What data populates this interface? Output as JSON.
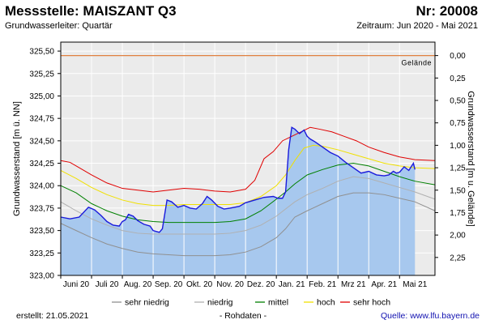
{
  "header": {
    "title": "Messstelle: MAISZANT Q3",
    "number": "Nr: 20008",
    "aquifer": "Grundwasserleiter: Quartär",
    "period": "Zeitraum: Jun 2020 - Mai 2021"
  },
  "footer": {
    "created": "erstellt:  21.05.2021",
    "raw": "- Rohdaten -",
    "source": "Quelle: www.lfu.bayern.de"
  },
  "colors": {
    "measured_fill": "#a7c8ee",
    "measured_line": "#1a1adc",
    "sehr_niedrig": "#909090",
    "niedrig": "#b0b0b0",
    "mittel": "#008000",
    "hoch": "#f0e000",
    "sehr_hoch": "#e00000",
    "gelaende": "#e08040",
    "grid": "#ffffff",
    "plot_bg": "#ebebeb"
  },
  "chart_data": {
    "type": "line",
    "title": "Messstelle: MAISZANT Q3",
    "ylabel": "Grundwasserstand [m ü. NN]",
    "ylabel_right": "Grundwasserstand [m u. Gelände]",
    "ylim": [
      323.0,
      325.6
    ],
    "yticks": [
      "323,00",
      "323,25",
      "323,50",
      "323,75",
      "324,00",
      "324,25",
      "324,50",
      "324,75",
      "325,00",
      "325,25",
      "325,50"
    ],
    "ytick_values": [
      323.0,
      323.25,
      323.5,
      323.75,
      324.0,
      324.25,
      324.5,
      324.75,
      325.0,
      325.25,
      325.5
    ],
    "right_ticks": [
      "0,00",
      "0,25",
      "0,50",
      "0,75",
      "1,00",
      "1,25",
      "1,50",
      "1,75",
      "2,00",
      "2,25"
    ],
    "right_tick_values": [
      0,
      0.25,
      0.5,
      0.75,
      1.0,
      1.25,
      1.5,
      1.75,
      2.0,
      2.25
    ],
    "gelaende_level": 325.45,
    "gelaende_label": "Gelände",
    "xlim": [
      0,
      12.15
    ],
    "month_labels": [
      "Juni 20",
      "Juli 20",
      "Aug. 20",
      "Sep. 20",
      "Okt. 20",
      "Nov. 20",
      "Dez. 20",
      "Jan. 21",
      "Feb. 21",
      "Mrz 21",
      "Apr. 21",
      "Mai 21"
    ],
    "month_positions": [
      0,
      1,
      2,
      3,
      4,
      5,
      6,
      7,
      8,
      9,
      10,
      11
    ],
    "series": [
      {
        "name": "sehr niedrig",
        "key": "sehr_niedrig",
        "x": [
          0,
          0.5,
          1,
          1.5,
          2,
          2.5,
          3,
          3.5,
          4,
          4.5,
          5,
          5.5,
          6,
          6.5,
          7,
          7.3,
          7.6,
          8,
          8.5,
          9,
          9.5,
          10,
          10.5,
          11,
          11.5,
          12.15
        ],
        "y": [
          323.58,
          323.5,
          323.42,
          323.35,
          323.3,
          323.26,
          323.24,
          323.23,
          323.22,
          323.22,
          323.22,
          323.23,
          323.26,
          323.32,
          323.42,
          323.52,
          323.65,
          323.72,
          323.8,
          323.88,
          323.92,
          323.92,
          323.9,
          323.86,
          323.82,
          323.72
        ]
      },
      {
        "name": "niedrig",
        "key": "niedrig",
        "x": [
          0,
          0.5,
          1,
          1.5,
          2,
          2.5,
          3,
          3.5,
          4,
          4.5,
          5,
          5.5,
          6,
          6.5,
          7,
          7.3,
          7.6,
          8,
          8.5,
          9,
          9.5,
          10,
          10.5,
          11,
          11.5,
          12.15
        ],
        "y": [
          323.82,
          323.72,
          323.63,
          323.56,
          323.5,
          323.47,
          323.46,
          323.46,
          323.46,
          323.46,
          323.46,
          323.47,
          323.5,
          323.56,
          323.66,
          323.74,
          323.82,
          323.9,
          323.97,
          324.05,
          324.1,
          324.08,
          324.03,
          323.98,
          323.93,
          323.85
        ]
      },
      {
        "name": "mittel",
        "key": "mittel",
        "x": [
          0,
          0.5,
          1,
          1.5,
          2,
          2.5,
          3,
          3.5,
          4,
          4.5,
          5,
          5.5,
          6,
          6.5,
          7,
          7.3,
          7.6,
          8,
          8.5,
          9,
          9.5,
          10,
          10.5,
          11,
          11.5,
          12.15
        ],
        "y": [
          324.0,
          323.92,
          323.8,
          323.72,
          323.66,
          323.62,
          323.6,
          323.59,
          323.59,
          323.59,
          323.59,
          323.6,
          323.63,
          323.72,
          323.85,
          323.93,
          324.02,
          324.12,
          324.18,
          324.23,
          324.25,
          324.22,
          324.16,
          324.1,
          324.05,
          324.01
        ]
      },
      {
        "name": "hoch",
        "key": "hoch",
        "x": [
          0,
          0.5,
          1,
          1.5,
          2,
          2.5,
          3,
          3.5,
          4,
          4.5,
          5,
          5.5,
          6,
          6.5,
          7,
          7.3,
          7.6,
          7.9,
          8.2,
          8.5,
          9,
          9.5,
          10,
          10.5,
          11,
          11.5,
          12.15
        ],
        "y": [
          324.17,
          324.08,
          323.98,
          323.9,
          323.84,
          323.8,
          323.78,
          323.78,
          323.79,
          323.79,
          323.79,
          323.79,
          323.81,
          323.88,
          324.0,
          324.12,
          324.28,
          324.42,
          324.45,
          324.44,
          324.4,
          324.35,
          324.3,
          324.25,
          324.22,
          324.2,
          324.19
        ]
      },
      {
        "name": "sehr hoch",
        "key": "sehr_hoch",
        "x": [
          0,
          0.3,
          0.6,
          1,
          1.5,
          2,
          2.5,
          3,
          3.5,
          4,
          4.5,
          5,
          5.5,
          6,
          6.3,
          6.6,
          6.9,
          7.2,
          7.5,
          7.8,
          8.1,
          8.4,
          8.8,
          9.2,
          9.6,
          10,
          10.5,
          11,
          11.5,
          12.15
        ],
        "y": [
          324.28,
          324.26,
          324.2,
          324.12,
          324.03,
          323.97,
          323.95,
          323.93,
          323.95,
          323.97,
          323.96,
          323.94,
          323.93,
          323.96,
          324.06,
          324.3,
          324.38,
          324.5,
          324.55,
          324.6,
          324.65,
          324.63,
          324.6,
          324.55,
          324.5,
          324.43,
          324.37,
          324.32,
          324.29,
          324.28
        ]
      },
      {
        "name": "Messwerte",
        "key": "measured",
        "legend": false,
        "x": [
          0,
          0.3,
          0.6,
          0.9,
          1.1,
          1.3,
          1.5,
          1.7,
          1.9,
          2.0,
          2.1,
          2.2,
          2.35,
          2.5,
          2.7,
          2.9,
          3.0,
          3.2,
          3.3,
          3.45,
          3.6,
          3.8,
          4.0,
          4.2,
          4.4,
          4.6,
          4.75,
          4.9,
          5.1,
          5.3,
          5.5,
          5.8,
          6.0,
          6.3,
          6.6,
          6.9,
          7.05,
          7.2,
          7.3,
          7.4,
          7.5,
          7.6,
          7.75,
          7.9,
          8.0,
          8.1,
          8.25,
          8.5,
          8.75,
          9.0,
          9.25,
          9.5,
          9.75,
          10.0,
          10.25,
          10.5,
          10.65,
          10.8,
          10.9,
          11.0,
          11.15,
          11.3,
          11.45,
          11.5
        ],
        "y": [
          323.65,
          323.63,
          323.65,
          323.76,
          323.73,
          323.67,
          323.6,
          323.56,
          323.55,
          323.6,
          323.62,
          323.68,
          323.66,
          323.61,
          323.57,
          323.55,
          323.5,
          323.48,
          323.52,
          323.84,
          323.82,
          323.76,
          323.78,
          323.75,
          323.74,
          323.8,
          323.88,
          323.84,
          323.77,
          323.74,
          323.75,
          323.77,
          323.81,
          323.84,
          323.87,
          323.88,
          323.86,
          323.86,
          323.93,
          324.4,
          324.65,
          324.63,
          324.58,
          324.62,
          324.55,
          324.52,
          324.49,
          324.43,
          324.37,
          324.33,
          324.26,
          324.2,
          324.14,
          324.16,
          324.12,
          324.11,
          324.12,
          324.16,
          324.14,
          324.15,
          324.21,
          324.17,
          324.25,
          324.18
        ]
      }
    ],
    "legend": {
      "placement": "bottom",
      "entries": [
        {
          "label": "sehr niedrig",
          "key": "sehr_niedrig"
        },
        {
          "label": "niedrig",
          "key": "niedrig"
        },
        {
          "label": "mittel",
          "key": "mittel"
        },
        {
          "label": "hoch",
          "key": "hoch"
        },
        {
          "label": "sehr hoch",
          "key": "sehr_hoch"
        }
      ]
    }
  }
}
